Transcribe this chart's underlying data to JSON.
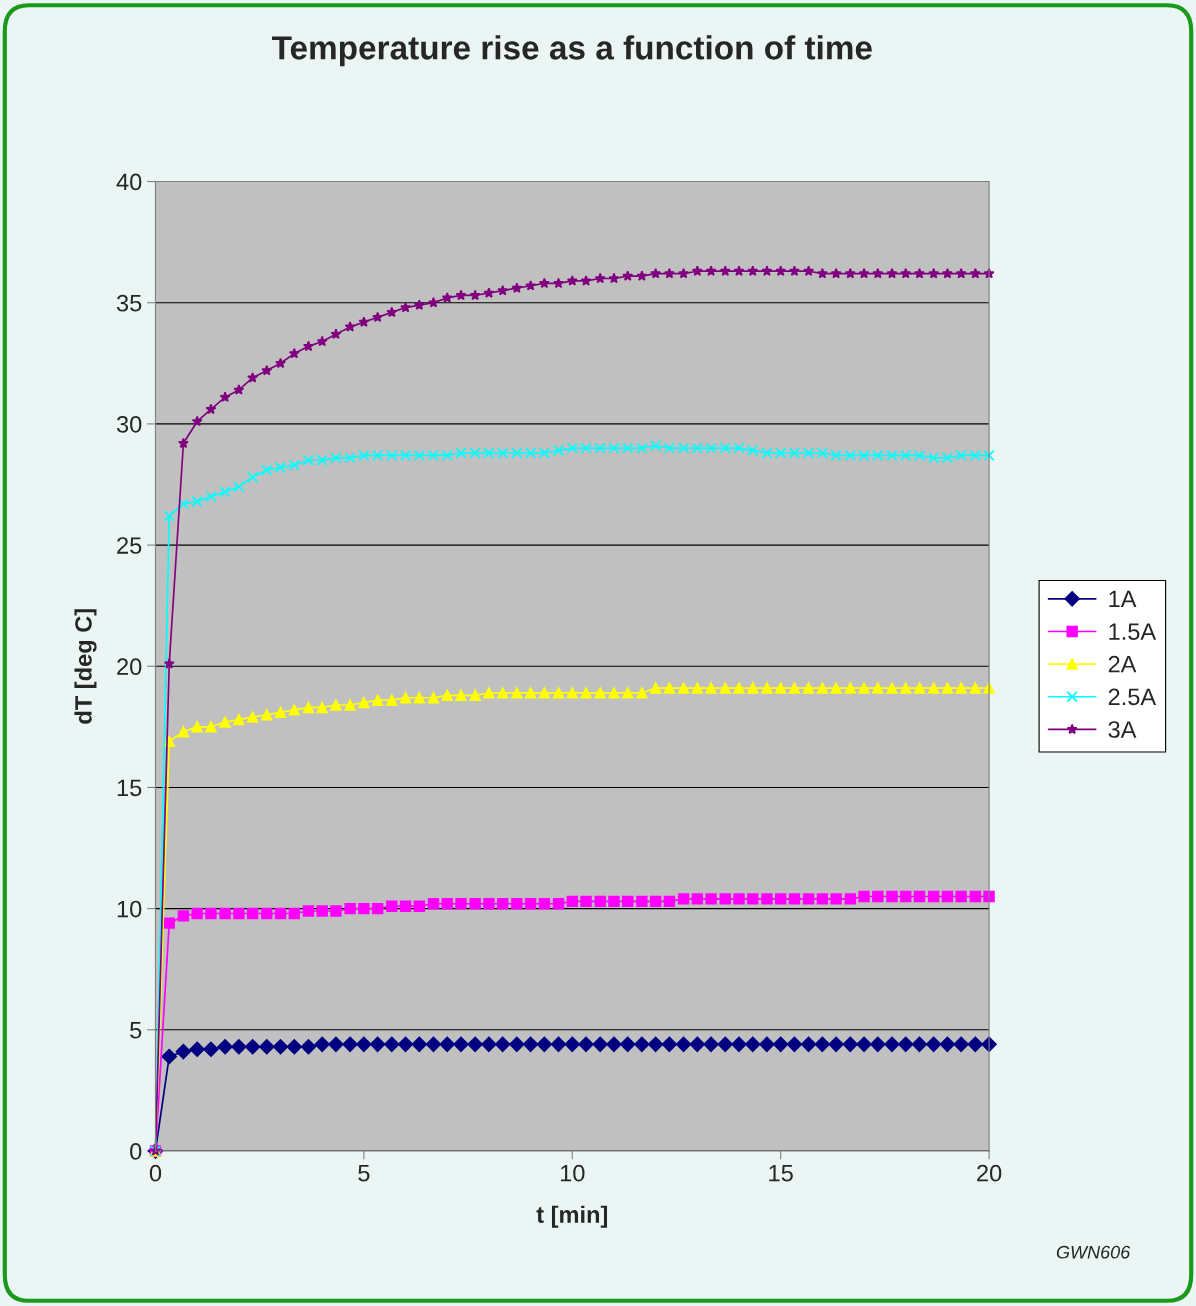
{
  "chart_data": {
    "type": "line",
    "title": "Temperature rise as a function of time",
    "xlabel": "t [min]",
    "ylabel": "dT [deg C]",
    "x": [
      0,
      0.33,
      0.67,
      1,
      1.33,
      1.67,
      2,
      2.33,
      2.67,
      3,
      3.33,
      3.67,
      4,
      4.33,
      4.67,
      5,
      5.33,
      5.67,
      6,
      6.33,
      6.67,
      7,
      7.33,
      7.67,
      8,
      8.33,
      8.67,
      9,
      9.33,
      9.67,
      10,
      10.33,
      10.67,
      11,
      11.33,
      11.67,
      12,
      12.33,
      12.67,
      13,
      13.33,
      13.67,
      14,
      14.33,
      14.67,
      15,
      15.33,
      15.67,
      16,
      16.33,
      16.67,
      17,
      17.33,
      17.67,
      18,
      18.33,
      18.67,
      19,
      19.33,
      19.67,
      20
    ],
    "series": [
      {
        "name": "1A",
        "color": "#000080",
        "marker": "diamond",
        "values": [
          0,
          3.9,
          4.1,
          4.2,
          4.2,
          4.3,
          4.3,
          4.3,
          4.3,
          4.3,
          4.3,
          4.3,
          4.4,
          4.4,
          4.4,
          4.4,
          4.4,
          4.4,
          4.4,
          4.4,
          4.4,
          4.4,
          4.4,
          4.4,
          4.4,
          4.4,
          4.4,
          4.4,
          4.4,
          4.4,
          4.4,
          4.4,
          4.4,
          4.4,
          4.4,
          4.4,
          4.4,
          4.4,
          4.4,
          4.4,
          4.4,
          4.4,
          4.4,
          4.4,
          4.4,
          4.4,
          4.4,
          4.4,
          4.4,
          4.4,
          4.4,
          4.4,
          4.4,
          4.4,
          4.4,
          4.4,
          4.4,
          4.4,
          4.4,
          4.4,
          4.4
        ]
      },
      {
        "name": "1.5A",
        "color": "#ff00ff",
        "marker": "square",
        "values": [
          0,
          9.4,
          9.7,
          9.8,
          9.8,
          9.8,
          9.8,
          9.8,
          9.8,
          9.8,
          9.8,
          9.9,
          9.9,
          9.9,
          10.0,
          10.0,
          10.0,
          10.1,
          10.1,
          10.1,
          10.2,
          10.2,
          10.2,
          10.2,
          10.2,
          10.2,
          10.2,
          10.2,
          10.2,
          10.2,
          10.3,
          10.3,
          10.3,
          10.3,
          10.3,
          10.3,
          10.3,
          10.3,
          10.4,
          10.4,
          10.4,
          10.4,
          10.4,
          10.4,
          10.4,
          10.4,
          10.4,
          10.4,
          10.4,
          10.4,
          10.4,
          10.5,
          10.5,
          10.5,
          10.5,
          10.5,
          10.5,
          10.5,
          10.5,
          10.5,
          10.5
        ]
      },
      {
        "name": "2A",
        "color": "#ffff00",
        "marker": "triangle",
        "values": [
          0,
          16.9,
          17.3,
          17.5,
          17.5,
          17.7,
          17.8,
          17.9,
          18.0,
          18.1,
          18.2,
          18.3,
          18.3,
          18.4,
          18.4,
          18.5,
          18.6,
          18.6,
          18.7,
          18.7,
          18.7,
          18.8,
          18.8,
          18.8,
          18.9,
          18.9,
          18.9,
          18.9,
          18.9,
          18.9,
          18.9,
          18.9,
          18.9,
          18.9,
          18.9,
          18.9,
          19.1,
          19.1,
          19.1,
          19.1,
          19.1,
          19.1,
          19.1,
          19.1,
          19.1,
          19.1,
          19.1,
          19.1,
          19.1,
          19.1,
          19.1,
          19.1,
          19.1,
          19.1,
          19.1,
          19.1,
          19.1,
          19.1,
          19.1,
          19.1,
          19.1
        ]
      },
      {
        "name": "2.5A",
        "color": "#00ffff",
        "marker": "cross",
        "values": [
          0,
          26.2,
          26.7,
          26.8,
          27.0,
          27.2,
          27.4,
          27.8,
          28.1,
          28.2,
          28.3,
          28.5,
          28.5,
          28.6,
          28.6,
          28.7,
          28.7,
          28.7,
          28.7,
          28.7,
          28.7,
          28.7,
          28.8,
          28.8,
          28.8,
          28.8,
          28.8,
          28.8,
          28.8,
          28.9,
          29.0,
          29.0,
          29.0,
          29.0,
          29.0,
          29.0,
          29.1,
          29.0,
          29.0,
          29.0,
          29.0,
          29.0,
          29.0,
          28.9,
          28.8,
          28.8,
          28.8,
          28.8,
          28.8,
          28.7,
          28.7,
          28.7,
          28.7,
          28.7,
          28.7,
          28.7,
          28.6,
          28.6,
          28.7,
          28.7,
          28.7
        ]
      },
      {
        "name": "3A",
        "color": "#800080",
        "marker": "star",
        "values": [
          0,
          20.1,
          29.2,
          30.1,
          30.6,
          31.1,
          31.4,
          31.9,
          32.2,
          32.5,
          32.9,
          33.2,
          33.4,
          33.7,
          34.0,
          34.2,
          34.4,
          34.6,
          34.8,
          34.9,
          35.0,
          35.2,
          35.3,
          35.3,
          35.4,
          35.5,
          35.6,
          35.7,
          35.8,
          35.8,
          35.9,
          35.9,
          36.0,
          36.0,
          36.1,
          36.1,
          36.2,
          36.2,
          36.2,
          36.3,
          36.3,
          36.3,
          36.3,
          36.3,
          36.3,
          36.3,
          36.3,
          36.3,
          36.2,
          36.2,
          36.2,
          36.2,
          36.2,
          36.2,
          36.2,
          36.2,
          36.2,
          36.2,
          36.2,
          36.2,
          36.2
        ]
      }
    ],
    "xlim": [
      0,
      20
    ],
    "xticks": [
      0,
      5,
      10,
      15,
      20
    ],
    "ylim": [
      0,
      40
    ],
    "yticks": [
      0,
      5,
      10,
      15,
      20,
      25,
      30,
      35,
      40
    ],
    "grid": "y",
    "legend": "right",
    "line_style": "solid",
    "annotations": [
      "GWN606"
    ]
  }
}
